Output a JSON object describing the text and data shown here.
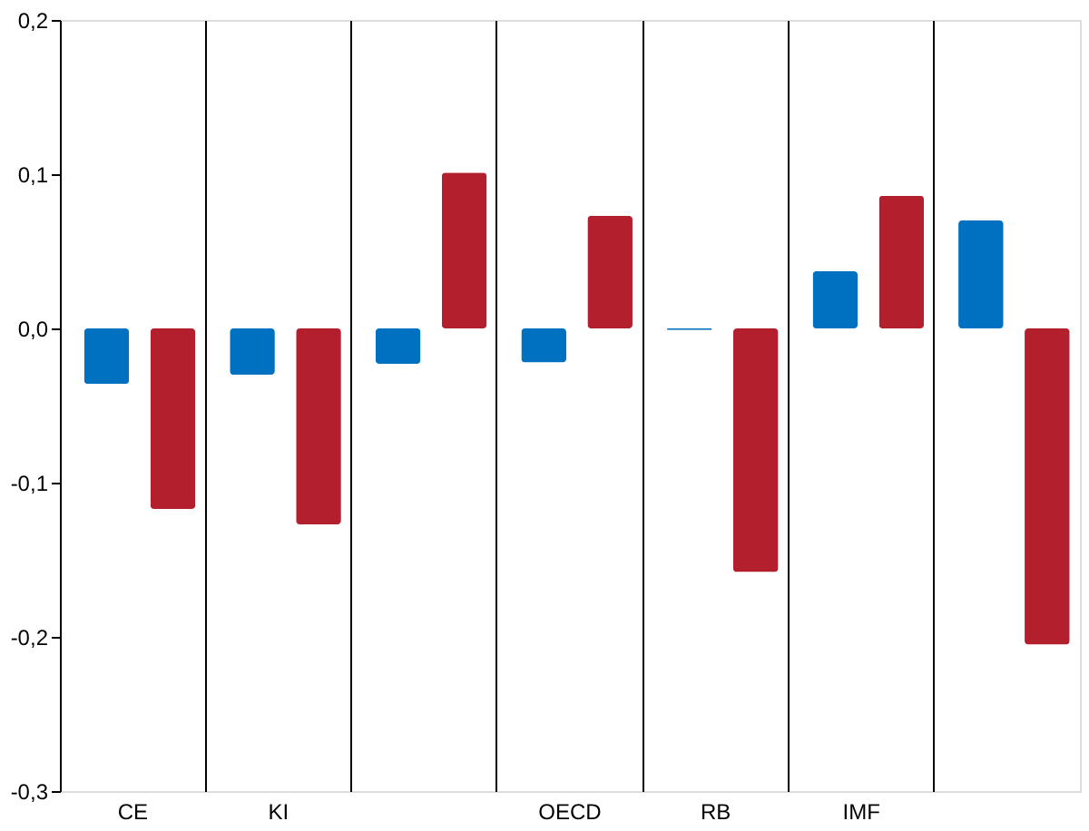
{
  "chart_data": {
    "type": "bar",
    "categories": [
      "CE",
      "KI",
      null,
      "OECD",
      "RB",
      "IMF",
      null
    ],
    "series": [
      {
        "color": "#0070c0",
        "values": [
          -0.036,
          -0.03,
          -0.023,
          -0.022,
          -0.001,
          0.037,
          0.07
        ]
      },
      {
        "color": "#b31f2d",
        "values": [
          -0.117,
          -0.127,
          0.101,
          0.073,
          -0.158,
          0.086,
          -0.205
        ]
      }
    ],
    "ylim": [
      -0.3,
      0.2
    ],
    "yticks": [
      {
        "value": -0.3,
        "label": "-0,3"
      },
      {
        "value": -0.2,
        "label": "-0,2"
      },
      {
        "value": -0.1,
        "label": "-0,1"
      },
      {
        "value": 0,
        "label": "0,0"
      },
      {
        "value": 0.1,
        "label": "0,1"
      },
      {
        "value": 0.2,
        "label": "0,2"
      }
    ],
    "grid": "x",
    "legend": false
  }
}
